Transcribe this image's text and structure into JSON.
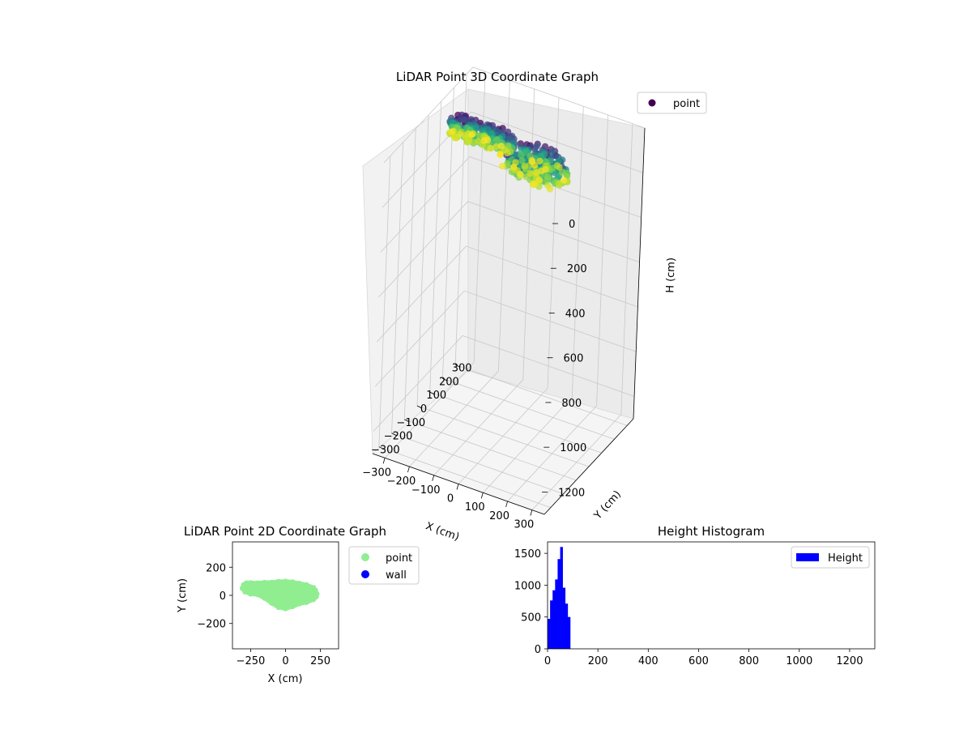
{
  "chart_data": [
    {
      "type": "scatter3d",
      "title": "LiDAR Point 3D Coordinate Graph",
      "xlabel": "X (cm)",
      "ylabel": "Y (cm)",
      "zlabel": "H (cm)",
      "xticks": [
        -300,
        -200,
        -100,
        0,
        100,
        200,
        300
      ],
      "yticks": [
        -300,
        -200,
        -100,
        0,
        100,
        200,
        300
      ],
      "zticks": [
        0,
        200,
        400,
        600,
        800,
        1000,
        1200
      ],
      "xlim": [
        -350,
        350
      ],
      "ylim": [
        -350,
        350
      ],
      "zlim": [
        0,
        1300
      ],
      "z_inverted": true,
      "colormap": "viridis",
      "legend": {
        "entries": [
          {
            "label": "point",
            "color": "#440154"
          }
        ],
        "loc": "upper right"
      },
      "clusters": [
        {
          "x_range": [
            -300,
            -30
          ],
          "y_range": [
            20,
            90
          ],
          "h_range": [
            0,
            90
          ]
        },
        {
          "x_range": [
            -40,
            220
          ],
          "y_range": [
            -90,
            80
          ],
          "h_range": [
            0,
            90
          ]
        }
      ]
    },
    {
      "type": "scatter",
      "title": "LiDAR Point 2D Coordinate Graph",
      "xlabel": "X (cm)",
      "ylabel": "Y (cm)",
      "xticks": [
        -250,
        0,
        250
      ],
      "yticks": [
        -200,
        0,
        200
      ],
      "xlim": [
        -380,
        380
      ],
      "ylim": [
        -380,
        380
      ],
      "series": [
        {
          "name": "point",
          "color": "#90ee90",
          "outline": [
            [
              -300,
              75
            ],
            [
              -280,
              88
            ],
            [
              -250,
              90
            ],
            [
              -200,
              88
            ],
            [
              -150,
              92
            ],
            [
              -100,
              92
            ],
            [
              -50,
              98
            ],
            [
              0,
              100
            ],
            [
              50,
              95
            ],
            [
              100,
              85
            ],
            [
              150,
              75
            ],
            [
              200,
              55
            ],
            [
              215,
              35
            ],
            [
              225,
              10
            ],
            [
              220,
              -10
            ],
            [
              200,
              -30
            ],
            [
              150,
              -50
            ],
            [
              100,
              -60
            ],
            [
              50,
              -80
            ],
            [
              0,
              -95
            ],
            [
              -50,
              -85
            ],
            [
              -100,
              -55
            ],
            [
              -150,
              -20
            ],
            [
              -200,
              5
            ],
            [
              -250,
              10
            ],
            [
              -290,
              25
            ],
            [
              -310,
              50
            ]
          ]
        },
        {
          "name": "wall",
          "color": "#0000ff",
          "points": []
        }
      ],
      "legend": {
        "loc": "outside upper right"
      }
    },
    {
      "type": "bar",
      "title": "Height Histogram",
      "xticks": [
        0,
        200,
        400,
        600,
        800,
        1000,
        1200
      ],
      "yticks": [
        0,
        500,
        1000,
        1500
      ],
      "xlim": [
        0,
        1300
      ],
      "ylim": [
        0,
        1680
      ],
      "bin_width": 10,
      "bin_edges": [
        0,
        10,
        20,
        30,
        40,
        50,
        60,
        70,
        80,
        90
      ],
      "values": [
        470,
        760,
        920,
        1090,
        1410,
        1600,
        960,
        710,
        500
      ],
      "color": "#0000ff",
      "series": [
        {
          "name": "Height"
        }
      ],
      "legend": {
        "loc": "upper right"
      }
    }
  ]
}
